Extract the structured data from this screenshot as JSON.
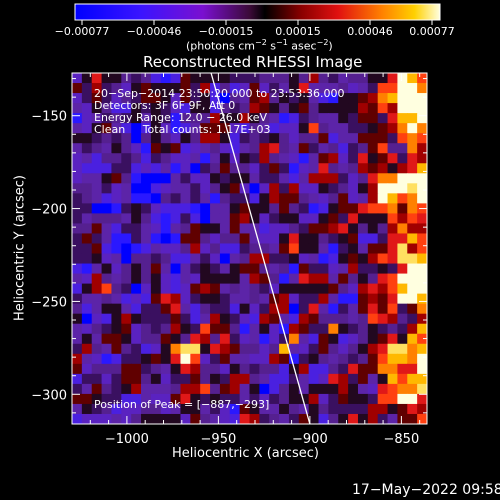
{
  "chart_data": {
    "type": "heatmap",
    "title": "Reconstructed RHESSI Image",
    "xlabel": "Heliocentric X (arcsec)",
    "ylabel": "Heliocentric Y (arcsec)",
    "xlim": [
      -1030,
      -836
    ],
    "ylim": [
      -316,
      -127
    ],
    "xticks": [
      -1000,
      -950,
      -900,
      -850
    ],
    "xtick_labels": [
      "−1000",
      "−950",
      "−900",
      "−850"
    ],
    "yticks": [
      -150,
      -200,
      -250,
      -300
    ],
    "ytick_labels": [
      "−150",
      "−200",
      "−250",
      "−300"
    ],
    "colorbar": {
      "ticks": [
        "−0.00077",
        "−0.00046",
        "−0.00015",
        "0.00015",
        "0.00046",
        "0.00077"
      ],
      "units_base": "(photons cm",
      "units_e1": "−2",
      "units_mid": " s",
      "units_e2": "−1",
      "units_tail": " asec",
      "units_e3": "−2",
      "units_close": ")"
    },
    "annotations": {
      "time": "20−Sep−2014 23:50:20.000 to 23:53:36.000",
      "detectors": "Detectors: 3F 6F 9F, Att 0",
      "energy": "Energy Range: 12.0 − 26.0 keV",
      "clean": "Clean     Total counts: 1.17E+03",
      "peak": "Position of Peak = [−887,−293]"
    },
    "limb_line": {
      "x1": -954,
      "y1": -127,
      "x2": -900,
      "y2": -316
    }
  },
  "footer": {
    "timestamp": "17−May−2022 09:58"
  }
}
